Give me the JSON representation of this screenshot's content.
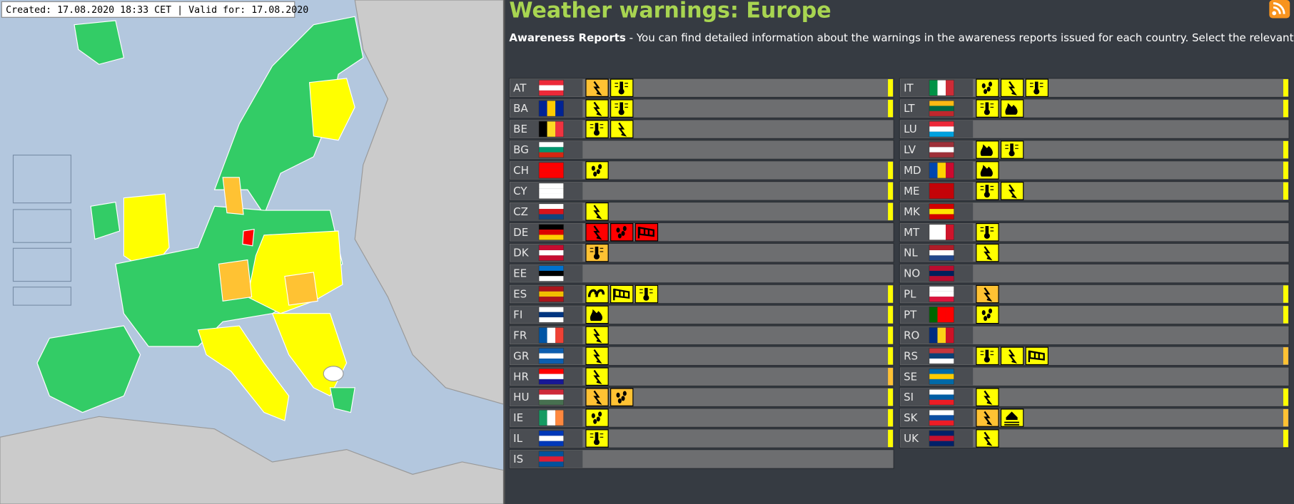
{
  "header": {
    "created": "Created: 17.08.2020 18:33 CET | Valid for: 17.08.2020",
    "title": "Weather warnings: Europe",
    "intro_bold": "Awareness Reports",
    "intro_text": " - You can find detailed information about the warnings in the awareness reports issued for each country. Select the relevant country."
  },
  "columns": [
    [
      {
        "code": "AT",
        "flag": [
          "#ed2939",
          "#ffffff",
          "#ed2939"
        ],
        "flag_dir": "h",
        "level": "#ffff00",
        "warnings": [
          {
            "icon": "thunderstorm",
            "color": "#ffc233"
          },
          {
            "icon": "high-temperature",
            "color": "#ffff00"
          }
        ]
      },
      {
        "code": "BA",
        "flag": [
          "#002395",
          "#fecb00",
          "#002395"
        ],
        "flag_dir": "v",
        "level": "#ffff00",
        "warnings": [
          {
            "icon": "thunderstorm",
            "color": "#ffff00"
          },
          {
            "icon": "high-temperature",
            "color": "#ffff00"
          }
        ]
      },
      {
        "code": "BE",
        "flag": [
          "#000000",
          "#fdda24",
          "#ef3340"
        ],
        "flag_dir": "v",
        "level": null,
        "warnings": [
          {
            "icon": "high-temperature",
            "color": "#ffff00"
          },
          {
            "icon": "thunderstorm",
            "color": "#ffff00"
          }
        ]
      },
      {
        "code": "BG",
        "flag": [
          "#ffffff",
          "#00966e",
          "#d62612"
        ],
        "flag_dir": "h",
        "level": null,
        "warnings": []
      },
      {
        "code": "CH",
        "flag": [
          "#ff0000",
          "#ff0000",
          "#ff0000"
        ],
        "flag_dir": "h",
        "level": "#ffff00",
        "warnings": [
          {
            "icon": "rain",
            "color": "#ffff00"
          }
        ]
      },
      {
        "code": "CY",
        "flag": [
          "#ffffff",
          "#ffffff",
          "#ffffff"
        ],
        "flag_dir": "h",
        "level": "#ffff00",
        "warnings": []
      },
      {
        "code": "CZ",
        "flag": [
          "#ffffff",
          "#d7141a",
          "#11457e"
        ],
        "flag_dir": "h",
        "level": "#ffff00",
        "warnings": [
          {
            "icon": "thunderstorm",
            "color": "#ffff00"
          }
        ]
      },
      {
        "code": "DE",
        "flag": [
          "#000000",
          "#dd0000",
          "#ffce00"
        ],
        "flag_dir": "h",
        "level": null,
        "warnings": [
          {
            "icon": "thunderstorm",
            "color": "#ff0000"
          },
          {
            "icon": "rain",
            "color": "#ff0000"
          },
          {
            "icon": "wind",
            "color": "#ff0000"
          }
        ]
      },
      {
        "code": "DK",
        "flag": [
          "#c60c30",
          "#ffffff",
          "#c60c30"
        ],
        "flag_dir": "h",
        "level": null,
        "warnings": [
          {
            "icon": "high-temperature",
            "color": "#ffc233"
          }
        ]
      },
      {
        "code": "EE",
        "flag": [
          "#0072ce",
          "#000000",
          "#ffffff"
        ],
        "flag_dir": "h",
        "level": null,
        "warnings": []
      },
      {
        "code": "ES",
        "flag": [
          "#aa151b",
          "#f1bf00",
          "#aa151b"
        ],
        "flag_dir": "h",
        "level": "#ffff00",
        "warnings": [
          {
            "icon": "coastal-event",
            "color": "#ffff00"
          },
          {
            "icon": "wind",
            "color": "#ffff00"
          },
          {
            "icon": "high-temperature",
            "color": "#ffff00"
          }
        ]
      },
      {
        "code": "FI",
        "flag": [
          "#ffffff",
          "#003580",
          "#ffffff"
        ],
        "flag_dir": "h",
        "level": "#ffff00",
        "warnings": [
          {
            "icon": "forest-fire",
            "color": "#ffff00"
          }
        ]
      },
      {
        "code": "FR",
        "flag": [
          "#0055a4",
          "#ffffff",
          "#ef4135"
        ],
        "flag_dir": "v",
        "level": "#ffff00",
        "warnings": [
          {
            "icon": "thunderstorm",
            "color": "#ffff00"
          }
        ]
      },
      {
        "code": "GR",
        "flag": [
          "#0d5eaf",
          "#ffffff",
          "#0d5eaf"
        ],
        "flag_dir": "h",
        "level": "#ffff00",
        "warnings": [
          {
            "icon": "thunderstorm",
            "color": "#ffff00"
          }
        ]
      },
      {
        "code": "HR",
        "flag": [
          "#ff0000",
          "#ffffff",
          "#171796"
        ],
        "flag_dir": "h",
        "level": "#ffc233",
        "warnings": [
          {
            "icon": "thunderstorm",
            "color": "#ffff00"
          }
        ]
      },
      {
        "code": "HU",
        "flag": [
          "#ce2939",
          "#ffffff",
          "#477050"
        ],
        "flag_dir": "h",
        "level": "#ffff00",
        "warnings": [
          {
            "icon": "thunderstorm",
            "color": "#ffc233"
          },
          {
            "icon": "rain",
            "color": "#ffc233"
          }
        ]
      },
      {
        "code": "IE",
        "flag": [
          "#169b62",
          "#ffffff",
          "#ff883e"
        ],
        "flag_dir": "v",
        "level": "#ffff00",
        "warnings": [
          {
            "icon": "rain",
            "color": "#ffff00"
          }
        ]
      },
      {
        "code": "IL",
        "flag": [
          "#0038b8",
          "#ffffff",
          "#0038b8"
        ],
        "flag_dir": "h",
        "level": "#ffff00",
        "warnings": [
          {
            "icon": "high-temperature",
            "color": "#ffff00"
          }
        ]
      },
      {
        "code": "IS",
        "flag": [
          "#02529c",
          "#dc1e35",
          "#02529c"
        ],
        "flag_dir": "h",
        "level": null,
        "warnings": []
      }
    ],
    [
      {
        "code": "IT",
        "flag": [
          "#009246",
          "#ffffff",
          "#ce2b37"
        ],
        "flag_dir": "v",
        "level": "#ffff00",
        "warnings": [
          {
            "icon": "rain",
            "color": "#ffff00"
          },
          {
            "icon": "thunderstorm",
            "color": "#ffff00"
          },
          {
            "icon": "high-temperature",
            "color": "#ffff00"
          }
        ]
      },
      {
        "code": "LT",
        "flag": [
          "#fdb913",
          "#006a44",
          "#c1272d"
        ],
        "flag_dir": "h",
        "level": "#ffff00",
        "warnings": [
          {
            "icon": "high-temperature",
            "color": "#ffff00"
          },
          {
            "icon": "forest-fire",
            "color": "#ffff00"
          }
        ]
      },
      {
        "code": "LU",
        "flag": [
          "#ed2939",
          "#ffffff",
          "#00a1de"
        ],
        "flag_dir": "h",
        "level": null,
        "warnings": []
      },
      {
        "code": "LV",
        "flag": [
          "#9e3039",
          "#ffffff",
          "#9e3039"
        ],
        "flag_dir": "h",
        "level": "#ffff00",
        "warnings": [
          {
            "icon": "forest-fire",
            "color": "#ffff00"
          },
          {
            "icon": "high-temperature",
            "color": "#ffff00"
          }
        ]
      },
      {
        "code": "MD",
        "flag": [
          "#0046ae",
          "#ffd200",
          "#cc092f"
        ],
        "flag_dir": "v",
        "level": "#ffff00",
        "warnings": [
          {
            "icon": "forest-fire",
            "color": "#ffff00"
          }
        ]
      },
      {
        "code": "ME",
        "flag": [
          "#c40308",
          "#c40308",
          "#c40308"
        ],
        "flag_dir": "h",
        "level": "#ffff00",
        "warnings": [
          {
            "icon": "high-temperature",
            "color": "#ffff00"
          },
          {
            "icon": "thunderstorm",
            "color": "#ffff00"
          }
        ]
      },
      {
        "code": "MK",
        "flag": [
          "#d20000",
          "#ffe600",
          "#d20000"
        ],
        "flag_dir": "h",
        "level": null,
        "warnings": []
      },
      {
        "code": "MT",
        "flag": [
          "#ffffff",
          "#ffffff",
          "#cf142b"
        ],
        "flag_dir": "v",
        "level": null,
        "warnings": [
          {
            "icon": "high-temperature",
            "color": "#ffff00"
          }
        ]
      },
      {
        "code": "NL",
        "flag": [
          "#ae1c28",
          "#ffffff",
          "#21468b"
        ],
        "flag_dir": "h",
        "level": null,
        "warnings": [
          {
            "icon": "thunderstorm",
            "color": "#ffff00"
          }
        ]
      },
      {
        "code": "NO",
        "flag": [
          "#ba0c2f",
          "#00205b",
          "#ba0c2f"
        ],
        "flag_dir": "h",
        "level": null,
        "warnings": []
      },
      {
        "code": "PL",
        "flag": [
          "#ffffff",
          "#ffffff",
          "#dc143c"
        ],
        "flag_dir": "h",
        "level": "#ffff00",
        "warnings": [
          {
            "icon": "thunderstorm",
            "color": "#ffc233"
          }
        ]
      },
      {
        "code": "PT",
        "flag": [
          "#006600",
          "#ff0000",
          "#ff0000"
        ],
        "flag_dir": "v",
        "level": "#ffff00",
        "warnings": [
          {
            "icon": "rain",
            "color": "#ffff00"
          }
        ]
      },
      {
        "code": "RO",
        "flag": [
          "#002b7f",
          "#fcd116",
          "#ce1126"
        ],
        "flag_dir": "v",
        "level": null,
        "warnings": []
      },
      {
        "code": "RS",
        "flag": [
          "#c6363c",
          "#0c4076",
          "#ffffff"
        ],
        "flag_dir": "h",
        "level": "#ffc233",
        "warnings": [
          {
            "icon": "high-temperature",
            "color": "#ffff00"
          },
          {
            "icon": "thunderstorm",
            "color": "#ffff00"
          },
          {
            "icon": "wind",
            "color": "#ffff00"
          }
        ]
      },
      {
        "code": "SE",
        "flag": [
          "#006aa7",
          "#fecc00",
          "#006aa7"
        ],
        "flag_dir": "h",
        "level": null,
        "warnings": []
      },
      {
        "code": "SI",
        "flag": [
          "#ffffff",
          "#005da4",
          "#ed1c24"
        ],
        "flag_dir": "h",
        "level": "#ffff00",
        "warnings": [
          {
            "icon": "thunderstorm",
            "color": "#ffff00"
          }
        ]
      },
      {
        "code": "SK",
        "flag": [
          "#ffffff",
          "#0b4ea2",
          "#ee1c25"
        ],
        "flag_dir": "h",
        "level": "#ffc233",
        "warnings": [
          {
            "icon": "thunderstorm",
            "color": "#ffc233"
          },
          {
            "icon": "flooding",
            "color": "#ffff00"
          }
        ]
      },
      {
        "code": "UK",
        "flag": [
          "#012169",
          "#c8102e",
          "#012169"
        ],
        "flag_dir": "h",
        "level": "#ffff00",
        "warnings": [
          {
            "icon": "thunderstorm",
            "color": "#ffff00"
          }
        ]
      }
    ]
  ]
}
